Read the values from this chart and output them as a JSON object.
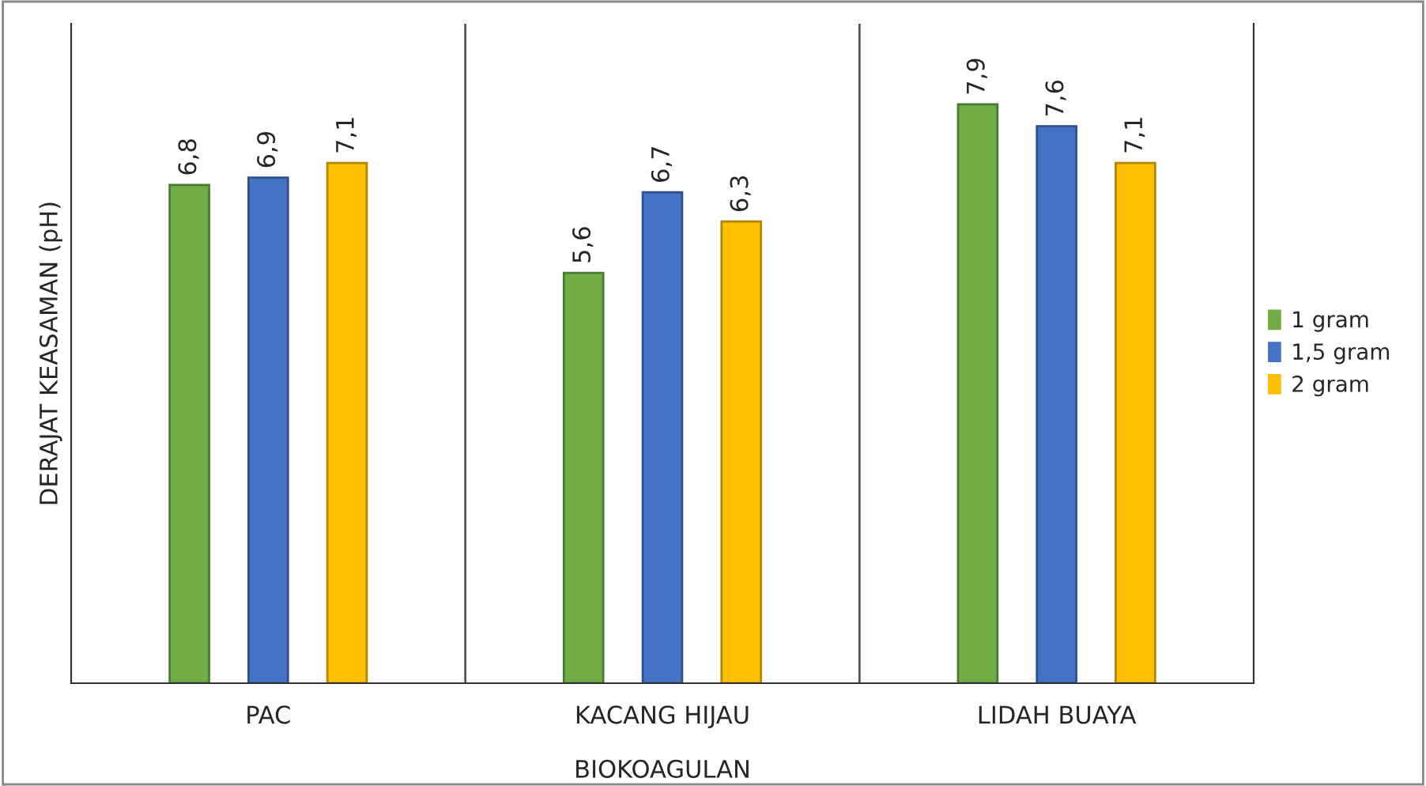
{
  "chart_data": {
    "type": "bar",
    "xlabel": "BIOKOAGULAN",
    "ylabel": "DERAJAT KEASAMAN (pH)",
    "categories": [
      "PAC",
      "KACANG HIJAU",
      "LIDAH BUAYA"
    ],
    "series": [
      {
        "name": "1 gram",
        "color": "#70ad47",
        "values": [
          6.8,
          5.6,
          7.9
        ],
        "value_labels": [
          "6,8",
          "5,6",
          "7,9"
        ]
      },
      {
        "name": "1,5 gram",
        "color": "#4472c4",
        "values": [
          6.9,
          6.7,
          7.6
        ],
        "value_labels": [
          "6,9",
          "6,7",
          "7,6"
        ]
      },
      {
        "name": "2 gram",
        "color": "#ffc000",
        "values": [
          7.1,
          6.3,
          7.1
        ],
        "value_labels": [
          "7,1",
          "6,3",
          "7,1"
        ]
      }
    ],
    "ylim": [
      0,
      9
    ],
    "tick_labels": "x",
    "grid": "x",
    "legend": "right"
  }
}
